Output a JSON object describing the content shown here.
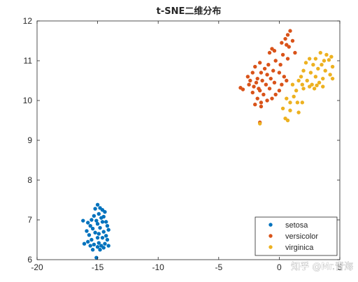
{
  "watermark": "知乎 @Mr.青海",
  "chart_data": {
    "type": "scatter",
    "title": "t-SNE二维分布",
    "xlabel": "",
    "ylabel": "",
    "xlim": [
      -20,
      5
    ],
    "ylim": [
      6,
      12
    ],
    "xticks": [
      -20,
      -15,
      -10,
      -5,
      0,
      5
    ],
    "yticks": [
      6,
      7,
      8,
      9,
      10,
      11,
      12
    ],
    "grid": false,
    "legend_position": "bottom-right",
    "series": [
      {
        "name": "setosa",
        "color": "#0072BD",
        "points": [
          [
            -15.0,
            7.38
          ],
          [
            -14.8,
            7.3
          ],
          [
            -14.6,
            7.25
          ],
          [
            -14.4,
            7.2
          ],
          [
            -15.2,
            7.28
          ],
          [
            -14.9,
            7.15
          ],
          [
            -15.3,
            7.1
          ],
          [
            -14.7,
            7.05
          ],
          [
            -14.5,
            7.08
          ],
          [
            -15.5,
            7.0
          ],
          [
            -15.1,
            6.98
          ],
          [
            -14.6,
            6.95
          ],
          [
            -14.3,
            6.95
          ],
          [
            -15.8,
            6.93
          ],
          [
            -16.2,
            6.98
          ],
          [
            -15.0,
            6.9
          ],
          [
            -14.2,
            6.85
          ],
          [
            -15.6,
            6.85
          ],
          [
            -14.8,
            6.8
          ],
          [
            -15.4,
            6.78
          ],
          [
            -14.1,
            6.75
          ],
          [
            -15.9,
            6.72
          ],
          [
            -14.5,
            6.7
          ],
          [
            -15.2,
            6.68
          ],
          [
            -14.9,
            6.65
          ],
          [
            -15.7,
            6.62
          ],
          [
            -14.3,
            6.6
          ],
          [
            -15.0,
            6.55
          ],
          [
            -14.6,
            6.55
          ],
          [
            -15.5,
            6.5
          ],
          [
            -14.2,
            6.5
          ],
          [
            -15.8,
            6.45
          ],
          [
            -14.9,
            6.42
          ],
          [
            -14.4,
            6.4
          ],
          [
            -15.3,
            6.38
          ],
          [
            -14.7,
            6.35
          ],
          [
            -15.6,
            6.35
          ],
          [
            -14.1,
            6.35
          ],
          [
            -15.0,
            6.32
          ],
          [
            -14.5,
            6.3
          ],
          [
            -15.4,
            6.25
          ],
          [
            -14.8,
            6.25
          ],
          [
            -16.1,
            6.4
          ],
          [
            -15.1,
            6.05
          ]
        ]
      },
      {
        "name": "versicolor",
        "color": "#D95319",
        "points": [
          [
            0.9,
            11.75
          ],
          [
            0.7,
            11.65
          ],
          [
            0.5,
            11.55
          ],
          [
            1.1,
            11.5
          ],
          [
            0.2,
            11.45
          ],
          [
            0.6,
            11.4
          ],
          [
            0.8,
            11.35
          ],
          [
            -0.6,
            11.3
          ],
          [
            -0.4,
            11.25
          ],
          [
            1.3,
            11.2
          ],
          [
            -0.8,
            11.2
          ],
          [
            0.3,
            11.15
          ],
          [
            0.7,
            11.05
          ],
          [
            -0.3,
            11.0
          ],
          [
            -1.6,
            10.95
          ],
          [
            -0.9,
            10.9
          ],
          [
            0.1,
            10.9
          ],
          [
            -2.0,
            10.85
          ],
          [
            -1.2,
            10.8
          ],
          [
            -0.5,
            10.75
          ],
          [
            -2.2,
            10.7
          ],
          [
            -1.5,
            10.7
          ],
          [
            0.0,
            10.7
          ],
          [
            -1.0,
            10.65
          ],
          [
            -2.6,
            10.6
          ],
          [
            -1.8,
            10.55
          ],
          [
            -0.7,
            10.55
          ],
          [
            0.4,
            10.6
          ],
          [
            -2.4,
            10.5
          ],
          [
            -1.4,
            10.5
          ],
          [
            0.6,
            10.5
          ],
          [
            -1.9,
            10.45
          ],
          [
            -0.4,
            10.45
          ],
          [
            -2.5,
            10.4
          ],
          [
            -1.1,
            10.4
          ],
          [
            0.2,
            10.4
          ],
          [
            -2.1,
            10.35
          ],
          [
            -1.7,
            10.3
          ],
          [
            -0.8,
            10.3
          ],
          [
            -3.2,
            10.32
          ],
          [
            -3.0,
            10.28
          ],
          [
            -1.6,
            10.25
          ],
          [
            0.0,
            10.25
          ],
          [
            -2.2,
            10.2
          ],
          [
            -1.3,
            10.15
          ],
          [
            -0.3,
            10.15
          ],
          [
            -1.8,
            10.05
          ],
          [
            -1.0,
            10.0
          ],
          [
            -0.6,
            10.05
          ],
          [
            -1.5,
            9.95
          ],
          [
            -2.0,
            9.9
          ],
          [
            -1.5,
            9.85
          ],
          [
            -1.6,
            9.45
          ]
        ]
      },
      {
        "name": "virginica",
        "color": "#EDB120",
        "points": [
          [
            3.4,
            11.2
          ],
          [
            3.9,
            11.15
          ],
          [
            4.3,
            11.1
          ],
          [
            2.5,
            11.05
          ],
          [
            3.0,
            11.05
          ],
          [
            3.7,
            11.0
          ],
          [
            4.1,
            11.02
          ],
          [
            2.2,
            10.95
          ],
          [
            2.8,
            10.9
          ],
          [
            3.5,
            10.9
          ],
          [
            4.4,
            10.85
          ],
          [
            3.2,
            10.8
          ],
          [
            3.8,
            10.75
          ],
          [
            2.0,
            10.75
          ],
          [
            2.6,
            10.7
          ],
          [
            4.2,
            10.65
          ],
          [
            1.8,
            10.6
          ],
          [
            3.0,
            10.6
          ],
          [
            3.6,
            10.55
          ],
          [
            4.4,
            10.55
          ],
          [
            1.6,
            10.5
          ],
          [
            2.3,
            10.5
          ],
          [
            3.3,
            10.45
          ],
          [
            1.9,
            10.4
          ],
          [
            2.7,
            10.4
          ],
          [
            3.1,
            10.38
          ],
          [
            1.1,
            10.4
          ],
          [
            2.5,
            10.35
          ],
          [
            3.6,
            10.35
          ],
          [
            2.0,
            10.3
          ],
          [
            2.9,
            10.3
          ],
          [
            1.4,
            10.25
          ],
          [
            1.2,
            10.1
          ],
          [
            0.6,
            10.05
          ],
          [
            0.9,
            9.95
          ],
          [
            1.5,
            9.95
          ],
          [
            1.9,
            9.95
          ],
          [
            0.3,
            9.8
          ],
          [
            0.9,
            9.75
          ],
          [
            1.6,
            9.7
          ],
          [
            0.5,
            9.55
          ],
          [
            0.7,
            9.5
          ],
          [
            -1.6,
            9.42
          ]
        ]
      }
    ]
  }
}
